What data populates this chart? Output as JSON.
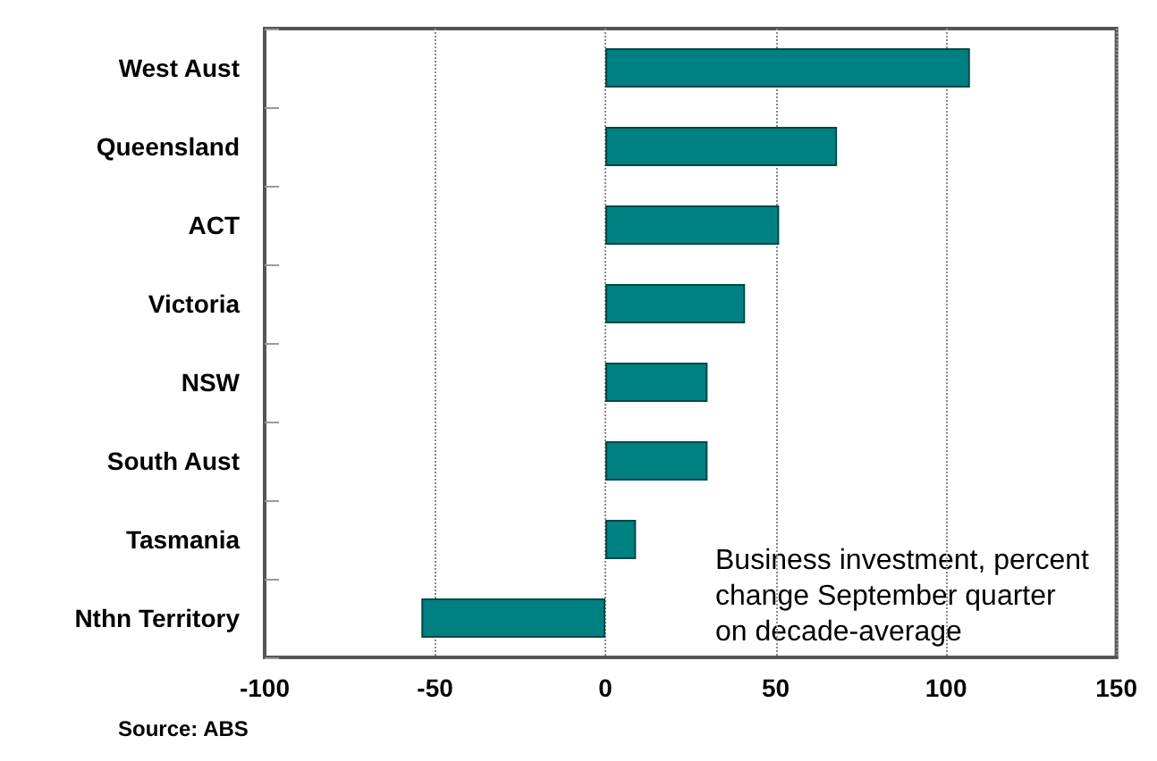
{
  "chart_data": {
    "type": "bar",
    "orientation": "horizontal",
    "categories": [
      "West Aust",
      "Queensland",
      "ACT",
      "Victoria",
      "NSW",
      "South Aust",
      "Tasmania",
      "Nthn Territory"
    ],
    "values": [
      107,
      68,
      51,
      41,
      30,
      30,
      9,
      -54
    ],
    "color": "#008080",
    "xlim": [
      -100,
      150
    ],
    "xticks": [
      -100,
      -50,
      0,
      50,
      100,
      150
    ],
    "grid": "x",
    "annotations": [
      "Business investment, percent\nchange September quarter\non decade-average",
      "Source: ABS"
    ]
  }
}
